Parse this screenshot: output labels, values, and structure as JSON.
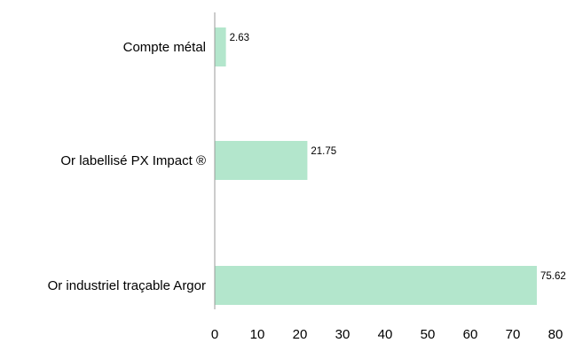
{
  "chart_data": {
    "type": "bar",
    "orientation": "horizontal",
    "categories": [
      "Compte métal",
      "Or labellisé PX Impact ®",
      "Or industriel traçable Argor"
    ],
    "values": [
      2.63,
      21.75,
      75.62
    ],
    "data_labels": [
      "2.63",
      "21.75",
      "75.62"
    ],
    "title": "",
    "xlabel": "",
    "ylabel": "",
    "xlim": [
      0,
      80
    ],
    "xticks": [
      0,
      10,
      20,
      30,
      40,
      50,
      60,
      70,
      80
    ],
    "xtick_labels": [
      "0",
      "10",
      "20",
      "30",
      "40",
      "50",
      "60",
      "70",
      "80"
    ],
    "grid": false,
    "legend": "none",
    "bar_color": "#b3e6cc",
    "axis_color": "#999999"
  }
}
